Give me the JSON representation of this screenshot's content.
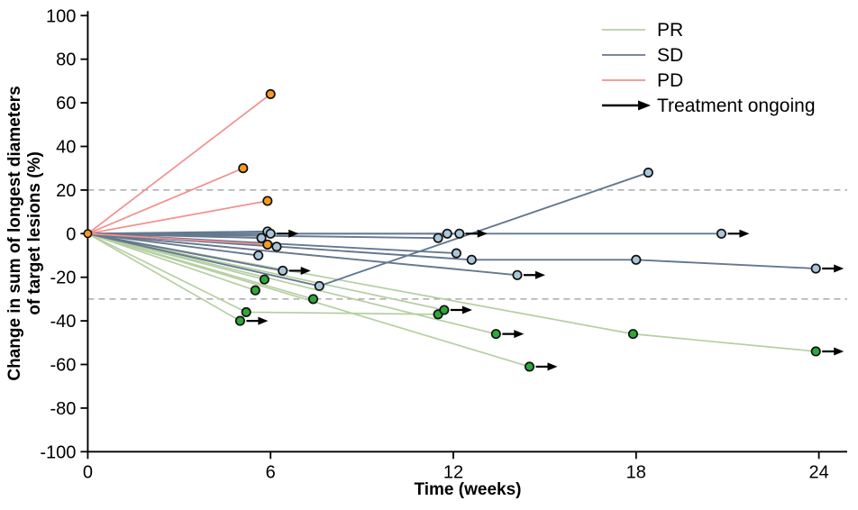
{
  "chart_data": {
    "type": "line",
    "title": "",
    "xlabel": "Time (weeks)",
    "ylabel_line1": "Change in sum of longest diameters",
    "ylabel_line2": "of target lesions (%)",
    "xlim": [
      0,
      24.9
    ],
    "ylim": [
      -100,
      100
    ],
    "xticks": [
      0,
      6,
      12,
      18,
      24
    ],
    "yticks": [
      100,
      80,
      60,
      40,
      20,
      0,
      -20,
      -40,
      -60,
      -80,
      -100
    ],
    "grid": "off",
    "threshold_lines": [
      20,
      -30
    ],
    "threshold_color": "#999999",
    "legend_position": "top-right",
    "legend": [
      {
        "label": "PR",
        "type": "line",
        "color": "#b5cfa2"
      },
      {
        "label": "SD",
        "type": "line",
        "color": "#64788f"
      },
      {
        "label": "PD",
        "type": "line",
        "color": "#f2908e"
      },
      {
        "label": "Treatment ongoing",
        "type": "arrow",
        "color": "#000000"
      }
    ],
    "groups": {
      "PR": {
        "line_color": "#b5cfa2",
        "marker_color": "#2fa83a"
      },
      "SD": {
        "line_color": "#64788f",
        "marker_color": "#a9c6da"
      },
      "PD": {
        "line_color": "#f2908e",
        "marker_color": "#f59b20"
      }
    },
    "origin_marker_color": "#f59b20",
    "marker_outline_color": "#111111",
    "series": [
      {
        "group": "PD",
        "ongoing": false,
        "points": [
          [
            0,
            0
          ],
          [
            6.0,
            64
          ]
        ]
      },
      {
        "group": "PD",
        "ongoing": false,
        "points": [
          [
            0,
            0
          ],
          [
            5.1,
            30
          ]
        ]
      },
      {
        "group": "PD",
        "ongoing": false,
        "points": [
          [
            0,
            0
          ],
          [
            5.9,
            15
          ]
        ]
      },
      {
        "group": "PD",
        "ongoing": false,
        "points": [
          [
            0,
            0
          ],
          [
            5.9,
            -5
          ]
        ]
      },
      {
        "group": "SD",
        "ongoing": false,
        "points": [
          [
            0,
            0
          ],
          [
            5.9,
            1
          ]
        ]
      },
      {
        "group": "SD",
        "ongoing": true,
        "points": [
          [
            0,
            0
          ],
          [
            6.0,
            0
          ]
        ]
      },
      {
        "group": "SD",
        "ongoing": false,
        "points": [
          [
            0,
            0
          ],
          [
            5.7,
            -2
          ]
        ]
      },
      {
        "group": "SD",
        "ongoing": false,
        "points": [
          [
            0,
            0
          ],
          [
            6.2,
            -6
          ]
        ]
      },
      {
        "group": "SD",
        "ongoing": false,
        "points": [
          [
            0,
            0
          ],
          [
            5.6,
            -10
          ]
        ]
      },
      {
        "group": "SD",
        "ongoing": true,
        "points": [
          [
            0,
            0
          ],
          [
            6.4,
            -17
          ]
        ]
      },
      {
        "group": "SD",
        "ongoing": false,
        "points": [
          [
            0,
            0
          ],
          [
            7.6,
            -24
          ],
          [
            18.4,
            28
          ]
        ]
      },
      {
        "group": "SD",
        "ongoing": false,
        "points": [
          [
            0,
            0
          ],
          [
            11.5,
            -2
          ]
        ]
      },
      {
        "group": "SD",
        "ongoing": true,
        "points": [
          [
            0,
            0
          ],
          [
            11.8,
            0
          ],
          [
            20.8,
            0
          ]
        ]
      },
      {
        "group": "SD",
        "ongoing": true,
        "points": [
          [
            0,
            0
          ],
          [
            12.2,
            0
          ]
        ]
      },
      {
        "group": "SD",
        "ongoing": false,
        "points": [
          [
            0,
            0
          ],
          [
            12.1,
            -9
          ]
        ]
      },
      {
        "group": "SD",
        "ongoing": true,
        "points": [
          [
            0,
            0
          ],
          [
            12.6,
            -12
          ],
          [
            18.0,
            -12
          ],
          [
            23.9,
            -16
          ]
        ]
      },
      {
        "group": "SD",
        "ongoing": true,
        "points": [
          [
            0,
            0
          ],
          [
            14.1,
            -19
          ]
        ]
      },
      {
        "group": "PR",
        "ongoing": false,
        "points": [
          [
            0,
            0
          ],
          [
            5.8,
            -21
          ]
        ]
      },
      {
        "group": "PR",
        "ongoing": false,
        "points": [
          [
            0,
            0
          ],
          [
            5.5,
            -26
          ]
        ]
      },
      {
        "group": "PR",
        "ongoing": false,
        "points": [
          [
            0,
            0
          ],
          [
            7.4,
            -30
          ]
        ]
      },
      {
        "group": "PR",
        "ongoing": false,
        "points": [
          [
            0,
            0
          ],
          [
            5.2,
            -36
          ],
          [
            11.5,
            -37
          ]
        ]
      },
      {
        "group": "PR",
        "ongoing": true,
        "points": [
          [
            0,
            0
          ],
          [
            5.0,
            -40
          ]
        ]
      },
      {
        "group": "PR",
        "ongoing": true,
        "points": [
          [
            0,
            0
          ],
          [
            11.7,
            -35
          ]
        ]
      },
      {
        "group": "PR",
        "ongoing": true,
        "points": [
          [
            0,
            0
          ],
          [
            13.4,
            -46
          ]
        ]
      },
      {
        "group": "PR",
        "ongoing": true,
        "points": [
          [
            0,
            0
          ],
          [
            14.5,
            -61
          ]
        ]
      },
      {
        "group": "PR",
        "ongoing": true,
        "points": [
          [
            0,
            0
          ],
          [
            17.9,
            -46
          ],
          [
            23.9,
            -54
          ]
        ]
      }
    ]
  }
}
